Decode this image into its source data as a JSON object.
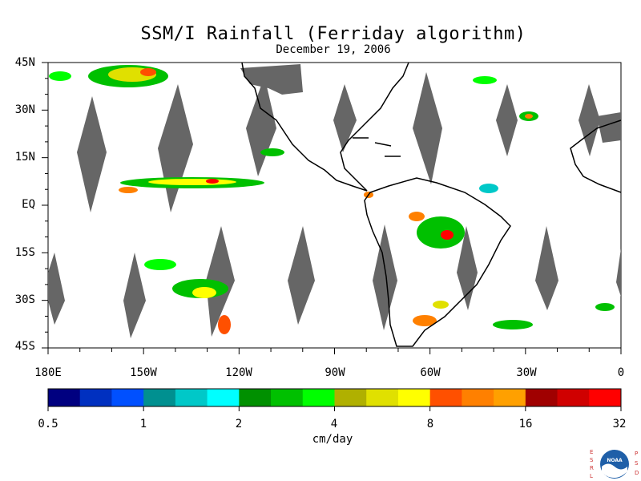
{
  "title": "SSM/I Rainfall (Ferriday algorithm)",
  "subtitle": "December 19, 2006",
  "lat_labels": [
    "45N",
    "30N",
    "15N",
    "EQ",
    "15S",
    "30S",
    "45S"
  ],
  "lon_labels": [
    "180E",
    "150W",
    "120W",
    "90W",
    "60W",
    "30W",
    "0"
  ],
  "colorbar": {
    "unit": "cm/day",
    "tick_labels": [
      "0.5",
      "1",
      "2",
      "4",
      "8",
      "16",
      "32"
    ],
    "colors": [
      "#000080",
      "#0030c0",
      "#0050ff",
      "#009090",
      "#00c8c8",
      "#00ffff",
      "#009000",
      "#00c000",
      "#00ff00",
      "#b0b000",
      "#e0e000",
      "#ffff00",
      "#ff5000",
      "#ff8000",
      "#ffa000",
      "#a00000",
      "#d00000",
      "#ff0000"
    ]
  },
  "colors": {
    "missing_data": "#666666",
    "land_outline": "#000000"
  },
  "logo": {
    "left_letters": "ESRL",
    "right_letters": "PSD",
    "center_text": "NOAA"
  }
}
